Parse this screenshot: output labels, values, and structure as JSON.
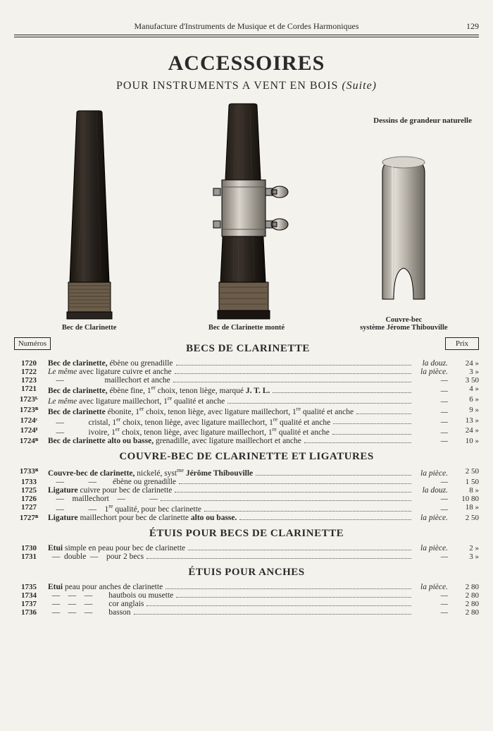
{
  "header": {
    "running": "Manufacture d'Instruments de Musique et de Cordes Harmoniques",
    "page_number": "129"
  },
  "title": "ACCESSOIRES",
  "subtitle": "POUR INSTRUMENTS A VENT EN BOIS",
  "subtitle_suffix": "(Suite)",
  "natural_size_note": "Dessins de grandeur naturelle",
  "illustrations": [
    {
      "caption": "Bec de Clarinette"
    },
    {
      "caption": "Bec de Clarinette monté"
    },
    {
      "caption_line1": "Couvre-bec",
      "caption_line2": "système Jérome Thibouville"
    }
  ],
  "column_headers": {
    "numeros": "Numéros",
    "prix": "Prix"
  },
  "sections": [
    {
      "title": "BECS DE CLARINETTE",
      "rows": [
        {
          "num": "1720",
          "desc": "<span class='b'>Bec de clarinette,</span> ébène ou grenadille",
          "unit": "la douz.",
          "prix": "24 »"
        },
        {
          "num": "1722",
          "desc": "<span class='i'>Le même</span> avec ligature cuivre et anche",
          "unit": "la pièce.",
          "prix": "3 »"
        },
        {
          "num": "1723",
          "desc": "&nbsp;&nbsp;&nbsp;&nbsp;—&nbsp;&nbsp;&nbsp;&nbsp;&nbsp;&nbsp;&nbsp;&nbsp;&nbsp;&nbsp;&nbsp;&nbsp;&nbsp;&nbsp;&nbsp;&nbsp;&nbsp;&nbsp;&nbsp;&nbsp;maillechort et anche",
          "unit": "—",
          "prix": "3 50"
        },
        {
          "num": "1721",
          "desc": "<span class='b'>Bec de clarinette,</span> ébène fine, 1<span class='sup'>er</span> choix, tenon liège, marqué <span class='b'>J. T. L.</span>",
          "unit": "—",
          "prix": "4 »"
        },
        {
          "num": "1723ᴸ",
          "desc": "<span class='i'>Le même</span> avec ligature maillechort, 1<span class='sup'>re</span> qualité et anche",
          "unit": "—",
          "prix": "6 »"
        },
        {
          "num": "1723ᴮ",
          "desc": "<span class='b'>Bec de clarinette</span> ébonite, 1<span class='sup'>er</span> choix, tenon liège, avec ligature maillechort, 1<span class='sup'>re</span> qualité et anche",
          "unit": "—",
          "prix": "9 »"
        },
        {
          "num": "1724ᶜ",
          "desc": "&nbsp;&nbsp;&nbsp;&nbsp;—&nbsp;&nbsp;&nbsp;&nbsp;&nbsp;&nbsp;&nbsp;&nbsp;&nbsp;&nbsp;&nbsp;&nbsp;cristal, 1<span class='sup'>er</span> choix, tenon liège, avec ligature maillechort, 1<span class='sup'>re</span> qualité et anche",
          "unit": "—",
          "prix": "13 »"
        },
        {
          "num": "1724ᴵ",
          "desc": "&nbsp;&nbsp;&nbsp;&nbsp;—&nbsp;&nbsp;&nbsp;&nbsp;&nbsp;&nbsp;&nbsp;&nbsp;&nbsp;&nbsp;&nbsp;&nbsp;ivoire, 1<span class='sup'>er</span> choix, tenon liège, avec ligature maillechort, 1<span class='sup'>re</span> qualité et anche",
          "unit": "—",
          "prix": "24 »"
        },
        {
          "num": "1724ᴮ",
          "desc": "<span class='b'>Bec de clarinette alto ou basse,</span> grenadille, avec ligature maillechort et anche",
          "unit": "—",
          "prix": "10 »"
        }
      ]
    },
    {
      "title": "COUVRE-BEC DE CLARINETTE ET LIGATURES",
      "rows": [
        {
          "num": "1733ᴮ",
          "desc": "<span class='b'>Couvre-bec de clarinette,</span> nickelé, syst<span class='sup'>me</span> <span class='b'>Jérôme Thibouville</span>",
          "unit": "la pièce.",
          "prix": "2 50"
        },
        {
          "num": "1733",
          "desc": "&nbsp;&nbsp;&nbsp;&nbsp;—&nbsp;&nbsp;&nbsp;&nbsp;&nbsp;&nbsp;&nbsp;&nbsp;&nbsp;&nbsp;&nbsp;&nbsp;—&nbsp;&nbsp;&nbsp;&nbsp;&nbsp;&nbsp;&nbsp;&nbsp;ébène ou grenadille",
          "unit": "—",
          "prix": "1 50"
        },
        {
          "num": "1725",
          "desc": "<span class='b'>Ligature</span> cuivre pour bec de clarinette",
          "unit": "la douz.",
          "prix": "8 »"
        },
        {
          "num": "1726",
          "desc": "&nbsp;&nbsp;&nbsp;&nbsp;—&nbsp;&nbsp;&nbsp;&nbsp;maillechort&nbsp;&nbsp;&nbsp;&nbsp;—&nbsp;&nbsp;&nbsp;&nbsp;&nbsp;&nbsp;&nbsp;&nbsp;&nbsp;&nbsp;&nbsp;&nbsp;—",
          "unit": "—",
          "prix": "10 80"
        },
        {
          "num": "1727",
          "desc": "&nbsp;&nbsp;&nbsp;&nbsp;—&nbsp;&nbsp;&nbsp;&nbsp;&nbsp;&nbsp;&nbsp;&nbsp;&nbsp;&nbsp;&nbsp;&nbsp;—&nbsp;&nbsp;&nbsp;&nbsp;1<span class='sup'>re</span> qualité, pour bec clarinette",
          "unit": "—",
          "prix": "18 »"
        },
        {
          "num": "1727ᴮ",
          "desc": "<span class='b'>Ligature</span> maillechort pour bec de clarinette <span class='b'>alto ou basse.</span>",
          "unit": "la pièce.",
          "prix": "2 50"
        }
      ]
    },
    {
      "title": "ÉTUIS POUR BECS DE CLARINETTE",
      "rows": [
        {
          "num": "1730",
          "desc": "<span class='b'>Etui</span> simple en peau pour bec de clarinette",
          "unit": "la pièce.",
          "prix": "2 »"
        },
        {
          "num": "1731",
          "desc": "&nbsp;&nbsp;—&nbsp;&nbsp;double&nbsp;&nbsp;—&nbsp;&nbsp;&nbsp;&nbsp;pour 2 becs",
          "unit": "—",
          "prix": "3 »"
        }
      ]
    },
    {
      "title": "ÉTUIS POUR ANCHES",
      "rows": [
        {
          "num": "1735",
          "desc": "<span class='b'>Etui</span> peau pour anches de clarinette",
          "unit": "la pièce.",
          "prix": "2 80"
        },
        {
          "num": "1734",
          "desc": "&nbsp;&nbsp;—&nbsp;&nbsp;&nbsp;&nbsp;—&nbsp;&nbsp;&nbsp;&nbsp;—&nbsp;&nbsp;&nbsp;&nbsp;&nbsp;&nbsp;&nbsp;&nbsp;hautbois ou musette",
          "unit": "—",
          "prix": "2 80"
        },
        {
          "num": "1737",
          "desc": "&nbsp;&nbsp;—&nbsp;&nbsp;&nbsp;&nbsp;—&nbsp;&nbsp;&nbsp;&nbsp;—&nbsp;&nbsp;&nbsp;&nbsp;&nbsp;&nbsp;&nbsp;&nbsp;cor anglais",
          "unit": "—",
          "prix": "2 80"
        },
        {
          "num": "1736",
          "desc": "&nbsp;&nbsp;—&nbsp;&nbsp;&nbsp;&nbsp;—&nbsp;&nbsp;&nbsp;&nbsp;—&nbsp;&nbsp;&nbsp;&nbsp;&nbsp;&nbsp;&nbsp;&nbsp;basson",
          "unit": "—",
          "prix": "2 80"
        }
      ]
    }
  ],
  "colors": {
    "text": "#2a2a2a",
    "bg": "#f4f2ed",
    "wood_dark": "#2a2420",
    "wood_mid": "#3b332c",
    "metal_light": "#d8d4cc",
    "metal_mid": "#a8a299",
    "metal_dark": "#6b665e"
  }
}
